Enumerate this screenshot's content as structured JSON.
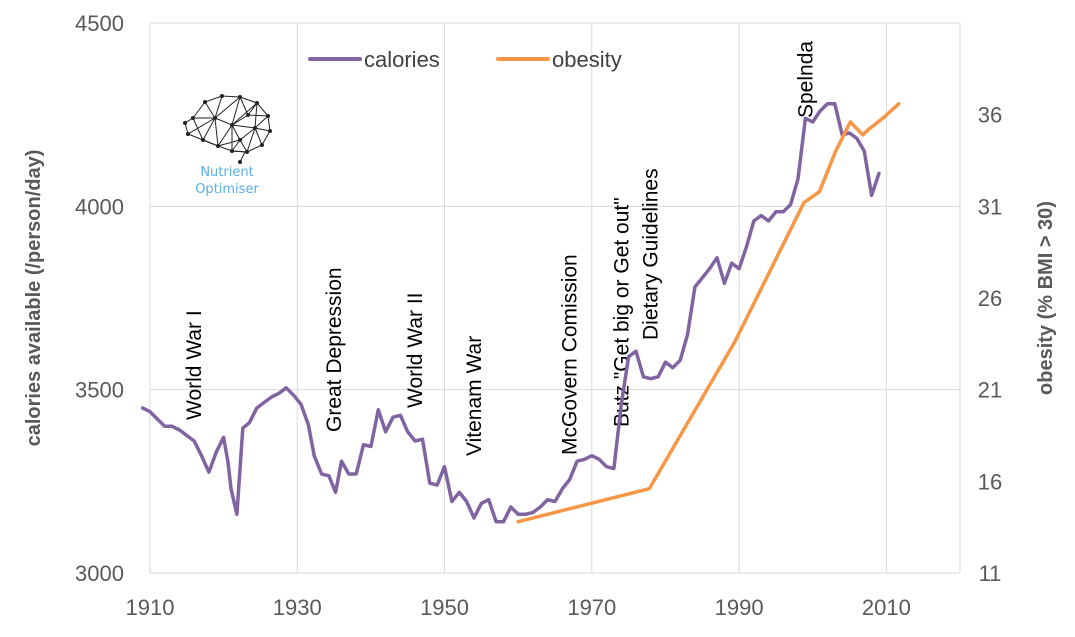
{
  "chart_data": {
    "type": "line",
    "title": "",
    "xlabel": "",
    "ylabel": "calories available (/person/day)",
    "y2label": "obesity (% BMI > 30)",
    "xlim": [
      1910,
      2020
    ],
    "ylim": [
      3000,
      4500
    ],
    "y2lim": [
      11,
      41
    ],
    "x_ticks": [
      "1910",
      "1930",
      "1950",
      "1970",
      "1990",
      "2010"
    ],
    "y_ticks": [
      "3000",
      "3500",
      "4000",
      "4500"
    ],
    "y2_ticks": [
      "11",
      "16",
      "21",
      "26",
      "31",
      "36"
    ],
    "legend_position": "top",
    "series": [
      {
        "name": "calories",
        "axis": "left",
        "color": "#8064a2",
        "points": [
          [
            1909,
            3450
          ],
          [
            1910,
            3440
          ],
          [
            1912,
            3400
          ],
          [
            1913,
            3400
          ],
          [
            1914,
            3390
          ],
          [
            1915,
            3375
          ],
          [
            1916,
            3360
          ],
          [
            1917,
            3320
          ],
          [
            1918,
            3275
          ],
          [
            1919,
            3330
          ],
          [
            1920,
            3370
          ],
          [
            1920.6,
            3300
          ],
          [
            1921,
            3230
          ],
          [
            1921.8,
            3160
          ],
          [
            1922.6,
            3395
          ],
          [
            1923.5,
            3410
          ],
          [
            1924.5,
            3450
          ],
          [
            1925.5,
            3465
          ],
          [
            1926.5,
            3480
          ],
          [
            1927.5,
            3490
          ],
          [
            1928.5,
            3505
          ],
          [
            1929.5,
            3485
          ],
          [
            1930.5,
            3460
          ],
          [
            1931.5,
            3405
          ],
          [
            1932.3,
            3320
          ],
          [
            1933.3,
            3270
          ],
          [
            1934.3,
            3265
          ],
          [
            1935.2,
            3220
          ],
          [
            1936,
            3305
          ],
          [
            1937,
            3270
          ],
          [
            1938,
            3270
          ],
          [
            1939,
            3350
          ],
          [
            1940,
            3345
          ],
          [
            1941,
            3445
          ],
          [
            1942,
            3385
          ],
          [
            1943,
            3425
          ],
          [
            1944,
            3430
          ],
          [
            1945,
            3385
          ],
          [
            1946,
            3360
          ],
          [
            1947,
            3365
          ],
          [
            1948,
            3245
          ],
          [
            1949,
            3240
          ],
          [
            1950,
            3290
          ],
          [
            1951,
            3195
          ],
          [
            1952,
            3220
          ],
          [
            1953,
            3195
          ],
          [
            1954,
            3150
          ],
          [
            1955,
            3190
          ],
          [
            1956,
            3200
          ],
          [
            1957,
            3140
          ],
          [
            1958,
            3140
          ],
          [
            1959,
            3180
          ],
          [
            1960,
            3160
          ],
          [
            1961,
            3160
          ],
          [
            1962,
            3165
          ],
          [
            1963,
            3180
          ],
          [
            1964,
            3200
          ],
          [
            1965,
            3195
          ],
          [
            1966,
            3230
          ],
          [
            1967,
            3255
          ],
          [
            1968,
            3305
          ],
          [
            1969,
            3310
          ],
          [
            1970,
            3320
          ],
          [
            1971,
            3310
          ],
          [
            1972,
            3290
          ],
          [
            1973,
            3285
          ],
          [
            1974,
            3460
          ],
          [
            1975,
            3590
          ],
          [
            1976,
            3605
          ],
          [
            1977,
            3535
          ],
          [
            1978,
            3530
          ],
          [
            1979,
            3535
          ],
          [
            1980,
            3575
          ],
          [
            1981,
            3560
          ],
          [
            1982,
            3580
          ],
          [
            1983,
            3650
          ],
          [
            1984,
            3780
          ],
          [
            1985,
            3805
          ],
          [
            1986,
            3830
          ],
          [
            1987,
            3860
          ],
          [
            1988,
            3790
          ],
          [
            1989,
            3845
          ],
          [
            1990,
            3830
          ],
          [
            1991,
            3890
          ],
          [
            1992,
            3960
          ],
          [
            1993,
            3975
          ],
          [
            1994,
            3960
          ],
          [
            1995,
            3985
          ],
          [
            1996,
            3985
          ],
          [
            1997,
            4005
          ],
          [
            1998,
            4075
          ],
          [
            1999,
            4240
          ],
          [
            2000,
            4230
          ],
          [
            2001,
            4260
          ],
          [
            2002,
            4280
          ],
          [
            2003,
            4280
          ],
          [
            2004,
            4195
          ],
          [
            2005,
            4200
          ],
          [
            2006,
            4185
          ],
          [
            2007,
            4150
          ],
          [
            2008,
            4030
          ],
          [
            2009,
            4090
          ]
        ]
      },
      {
        "name": "obesity",
        "axis": "right",
        "color": "#f79646",
        "points": [
          [
            1960,
            13.8
          ],
          [
            1977.8,
            15.6
          ],
          [
            1989.4,
            23.6
          ],
          [
            1998.8,
            31.2
          ],
          [
            2000.9,
            31.8
          ],
          [
            2003.1,
            34.0
          ],
          [
            2005.1,
            35.6
          ],
          [
            2006.8,
            34.9
          ],
          [
            2007.6,
            35.2
          ],
          [
            2009.5,
            35.8
          ],
          [
            2011.7,
            36.6
          ]
        ]
      }
    ],
    "annotations": [
      {
        "text": "World War I",
        "x": 1916
      },
      {
        "text": "Great Depression",
        "x": 1935
      },
      {
        "text": "World War II",
        "x": 1946
      },
      {
        "text": "Vitenam War",
        "x": 1954
      },
      {
        "text": "McGovern Comission",
        "x": 1967
      },
      {
        "text": "Butz \"Get big or Get out\"",
        "x": 1974
      },
      {
        "text": "Dietary Guidelines",
        "x": 1978
      },
      {
        "text": "Spelnda",
        "x": 1999
      }
    ]
  },
  "logo": {
    "line1": "Nutrient",
    "line2": "Optimiser"
  }
}
